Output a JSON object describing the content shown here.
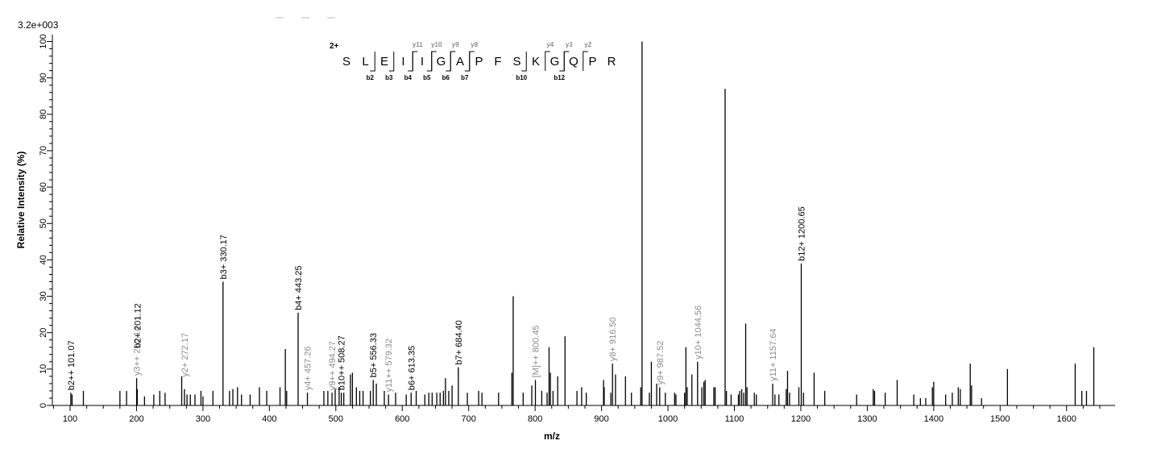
{
  "chart_data": {
    "type": "bar",
    "scale_label": "3.2e+003",
    "xlabel": "m/z",
    "ylabel": "Relative  Intensity (%)",
    "xlim": [
      75,
      1680
    ],
    "ylim": [
      0,
      100
    ],
    "x_ticks": [
      100,
      200,
      300,
      400,
      500,
      600,
      700,
      800,
      900,
      1000,
      1100,
      1200,
      1300,
      1400,
      1500,
      1600
    ],
    "y_ticks": [
      0,
      10,
      20,
      30,
      40,
      50,
      60,
      70,
      80,
      90,
      100
    ],
    "peptide": {
      "charge": "2+",
      "sequence": [
        "S",
        "L",
        "E",
        "I",
        "I",
        "G",
        "A",
        "P",
        "F",
        "S",
        "K",
        "G",
        "Q",
        "P",
        "R"
      ],
      "b_ions": [
        {
          "after": 2,
          "label": "b2"
        },
        {
          "after": 3,
          "label": "b3"
        },
        {
          "after": 4,
          "label": "b4"
        },
        {
          "after": 5,
          "label": "b5"
        },
        {
          "after": 6,
          "label": "b6"
        },
        {
          "after": 7,
          "label": "b7"
        },
        {
          "after": 10,
          "label": "b10"
        },
        {
          "after": 12,
          "label": "b12"
        }
      ],
      "y_ions": [
        {
          "after": 4,
          "label": "y11"
        },
        {
          "after": 5,
          "label": "y10"
        },
        {
          "after": 6,
          "label": "y9"
        },
        {
          "after": 7,
          "label": "y8"
        },
        {
          "after": 11,
          "label": "y4"
        },
        {
          "after": 12,
          "label": "y3"
        },
        {
          "after": 13,
          "label": "y2"
        }
      ]
    },
    "peaks": [
      [
        101.07,
        3.5
      ],
      [
        103,
        3
      ],
      [
        120,
        4
      ],
      [
        175,
        4
      ],
      [
        185,
        4
      ],
      [
        200.14,
        7.5
      ],
      [
        201.12,
        4.5
      ],
      [
        212,
        2.5
      ],
      [
        226,
        3
      ],
      [
        235,
        4
      ],
      [
        243,
        3.5
      ],
      [
        268,
        8
      ],
      [
        272.17,
        4.5
      ],
      [
        276,
        3
      ],
      [
        281,
        3
      ],
      [
        288,
        3
      ],
      [
        297,
        4
      ],
      [
        300,
        2.5
      ],
      [
        315,
        4
      ],
      [
        330.17,
        34
      ],
      [
        340,
        4
      ],
      [
        345,
        4.5
      ],
      [
        352,
        5
      ],
      [
        358,
        3
      ],
      [
        371,
        3
      ],
      [
        385,
        5
      ],
      [
        396,
        4
      ],
      [
        416,
        5
      ],
      [
        424,
        15.5
      ],
      [
        426,
        4
      ],
      [
        443.25,
        25.5
      ],
      [
        457.26,
        3.5
      ],
      [
        482,
        4
      ],
      [
        488,
        4
      ],
      [
        494.27,
        3.5
      ],
      [
        499,
        4.5
      ],
      [
        505,
        5
      ],
      [
        508.27,
        3.5
      ],
      [
        512,
        3.5
      ],
      [
        522,
        8.5
      ],
      [
        525,
        9
      ],
      [
        531,
        5
      ],
      [
        536,
        4
      ],
      [
        541,
        4
      ],
      [
        552,
        4
      ],
      [
        556.33,
        7
      ],
      [
        561,
        6
      ],
      [
        573,
        4
      ],
      [
        579.32,
        3
      ],
      [
        590,
        3.5
      ],
      [
        606,
        3
      ],
      [
        613.35,
        3.5
      ],
      [
        621,
        4
      ],
      [
        634,
        3
      ],
      [
        640,
        3.5
      ],
      [
        645,
        3.5
      ],
      [
        652,
        3.5
      ],
      [
        657,
        3.5
      ],
      [
        662,
        4
      ],
      [
        665,
        7.5
      ],
      [
        670,
        4
      ],
      [
        675,
        5.5
      ],
      [
        684.4,
        10.5
      ],
      [
        698,
        3.5
      ],
      [
        715,
        4
      ],
      [
        720,
        3.5
      ],
      [
        745,
        3.5
      ],
      [
        765,
        9
      ],
      [
        767,
        30
      ],
      [
        782,
        3.5
      ],
      [
        795,
        5.5
      ],
      [
        800.45,
        7
      ],
      [
        810,
        4
      ],
      [
        818,
        3.5
      ],
      [
        821,
        16
      ],
      [
        823,
        9
      ],
      [
        827,
        4
      ],
      [
        834,
        8
      ],
      [
        845,
        19
      ],
      [
        863,
        4
      ],
      [
        870,
        5
      ],
      [
        877,
        3.5
      ],
      [
        903,
        7
      ],
      [
        904,
        5
      ],
      [
        914,
        3.5
      ],
      [
        916.5,
        11.5
      ],
      [
        921,
        8.5
      ],
      [
        936,
        8
      ],
      [
        945,
        3.5
      ],
      [
        959,
        5
      ],
      [
        961,
        100
      ],
      [
        972,
        3.5
      ],
      [
        975,
        12
      ],
      [
        983,
        6
      ],
      [
        987.52,
        5
      ],
      [
        996,
        3.5
      ],
      [
        1010,
        3.5
      ],
      [
        1012,
        3
      ],
      [
        1025,
        3.5
      ],
      [
        1027,
        16
      ],
      [
        1029,
        5
      ],
      [
        1036,
        8.5
      ],
      [
        1044.56,
        12
      ],
      [
        1051,
        5
      ],
      [
        1054,
        6.5
      ],
      [
        1056,
        7
      ],
      [
        1069,
        5
      ],
      [
        1071,
        5
      ],
      [
        1086,
        87
      ],
      [
        1088,
        4
      ],
      [
        1095,
        3
      ],
      [
        1106,
        3
      ],
      [
        1108,
        4
      ],
      [
        1111,
        4.5
      ],
      [
        1114,
        3.5
      ],
      [
        1117,
        22.5
      ],
      [
        1119,
        5
      ],
      [
        1130,
        3.5
      ],
      [
        1133,
        3
      ],
      [
        1157.64,
        6
      ],
      [
        1161,
        3
      ],
      [
        1167,
        3
      ],
      [
        1178,
        4.5
      ],
      [
        1180,
        9.5
      ],
      [
        1183,
        3.5
      ],
      [
        1197,
        5
      ],
      [
        1200.65,
        39
      ],
      [
        1204,
        3.5
      ],
      [
        1220,
        9
      ],
      [
        1236,
        4
      ],
      [
        1284,
        3
      ],
      [
        1309,
        4.5
      ],
      [
        1311,
        4
      ],
      [
        1327,
        3.5
      ],
      [
        1345,
        7
      ],
      [
        1370,
        3
      ],
      [
        1380,
        2
      ],
      [
        1388,
        2
      ],
      [
        1398,
        5
      ],
      [
        1400,
        6.5
      ],
      [
        1418,
        3
      ],
      [
        1428,
        3.5
      ],
      [
        1437,
        5
      ],
      [
        1440,
        4.5
      ],
      [
        1455,
        11.5
      ],
      [
        1457,
        5.5
      ],
      [
        1472,
        2
      ],
      [
        1511,
        10
      ],
      [
        1613,
        11.5
      ],
      [
        1623,
        4
      ],
      [
        1630,
        4
      ],
      [
        1641,
        16
      ]
    ],
    "annotations": [
      {
        "mz": 101.07,
        "intensity": 3.5,
        "text": "b2++ 101.07",
        "series": "b"
      },
      {
        "mz": 200.14,
        "intensity": 7.5,
        "text": "y3++ 200.14",
        "series": "y"
      },
      {
        "mz": 201.12,
        "intensity": 4.5,
        "text": "b2+ 201.12",
        "series": "b",
        "lift": 48
      },
      {
        "mz": 272.17,
        "intensity": 4.5,
        "text": "y2+ 272.17",
        "series": "y",
        "lift": 12
      },
      {
        "mz": 330.17,
        "intensity": 34,
        "text": "b3+ 330.17",
        "series": "b"
      },
      {
        "mz": 443.25,
        "intensity": 25.5,
        "text": "b4+ 443.25",
        "series": "b"
      },
      {
        "mz": 457.26,
        "intensity": 3.5,
        "text": "y4+ 457.26",
        "series": "y"
      },
      {
        "mz": 494.27,
        "intensity": 3.5,
        "text": "y9++ 494.27",
        "series": "y"
      },
      {
        "mz": 508.27,
        "intensity": 3.5,
        "text": "b10++ 508.27",
        "series": "b"
      },
      {
        "mz": 556.33,
        "intensity": 7,
        "text": "b5+ 556.33",
        "series": "b"
      },
      {
        "mz": 579.32,
        "intensity": 3,
        "text": "y11++ 579.32",
        "series": "y"
      },
      {
        "mz": 613.35,
        "intensity": 3.5,
        "text": "b6+ 613.35",
        "series": "b"
      },
      {
        "mz": 684.4,
        "intensity": 10.5,
        "text": "b7+ 684.40",
        "series": "b"
      },
      {
        "mz": 800.45,
        "intensity": 7,
        "text": "[M]++ 800.45",
        "series": "y"
      },
      {
        "mz": 916.5,
        "intensity": 11.5,
        "text": "y8+ 916.50",
        "series": "y"
      },
      {
        "mz": 987.52,
        "intensity": 5,
        "text": "y9+ 987.52",
        "series": "y"
      },
      {
        "mz": 1044.56,
        "intensity": 12,
        "text": "y10+ 1044.56",
        "series": "y"
      },
      {
        "mz": 1157.64,
        "intensity": 6,
        "text": "y11+ 1157.64",
        "series": "y"
      },
      {
        "mz": 1200.65,
        "intensity": 39,
        "text": "b12+ 1200.65",
        "series": "b"
      }
    ],
    "colors": {
      "b": "#000000",
      "y": "#8c8c8c",
      "peak": "#000000"
    }
  }
}
